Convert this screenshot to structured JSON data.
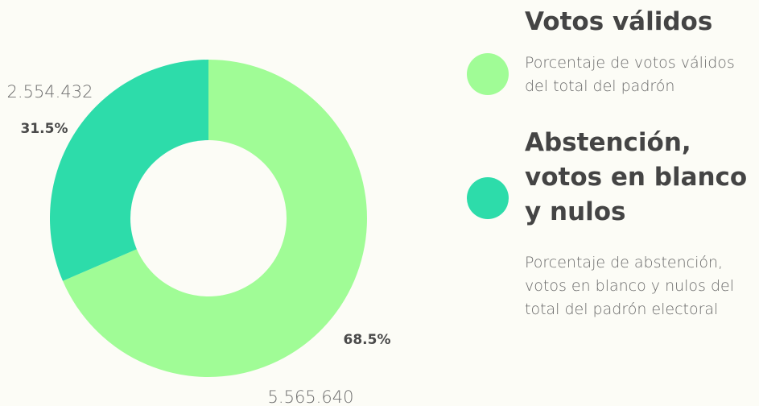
{
  "chart_data": {
    "type": "pie",
    "donut": true,
    "slices": [
      {
        "label": "Votos válidos",
        "value": 5565640,
        "value_label": "5.565.640",
        "percent_label": "68.5%",
        "color": "#a0fc96"
      },
      {
        "label": "Abstención, votos en blanco y nulos",
        "value": 2554432,
        "value_label": "2.554.432",
        "percent_label": "31.5%",
        "color": "#2ddcaa"
      }
    ]
  },
  "legend": {
    "items": [
      {
        "title": "Votos válidos",
        "description": "Porcentaje de votos válidos del total del padrón",
        "color": "#a0fc96"
      },
      {
        "title": "Abstención, votos en blanco y nulos",
        "description": "Porcentaje de abstención, votos en blanco y nulos del total del padrón electoral",
        "color": "#2ddcaa"
      }
    ]
  }
}
